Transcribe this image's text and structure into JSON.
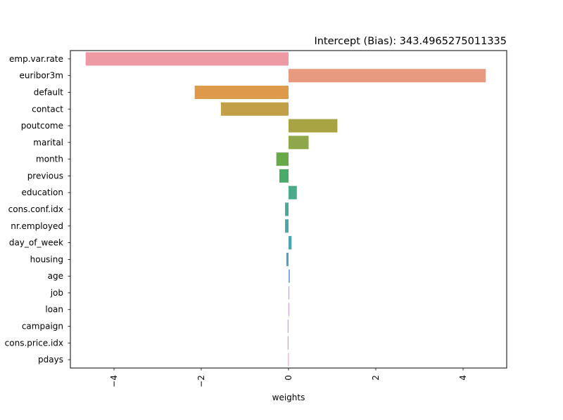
{
  "chart_data": {
    "type": "bar",
    "orientation": "horizontal",
    "title": "Intercept (Bias): 343.4965275011335",
    "xlabel": "weights",
    "ylabel": "",
    "xlim": [
      -5.0,
      5.0
    ],
    "x_ticks": [
      -4,
      -2,
      0,
      2,
      4
    ],
    "x_tick_labels": [
      "−4",
      "−2",
      "0",
      "2",
      "4"
    ],
    "x_tick_rotation": "vertical",
    "grid": false,
    "categories": [
      "emp.var.rate",
      "euribor3m",
      "default",
      "contact",
      "poutcome",
      "marital",
      "month",
      "previous",
      "education",
      "cons.conf.idx",
      "nr.employed",
      "day_of_week",
      "housing",
      "age",
      "job",
      "loan",
      "campaign",
      "cons.price.idx",
      "pdays"
    ],
    "values": [
      -4.65,
      4.52,
      -2.15,
      -1.55,
      1.12,
      0.46,
      -0.28,
      -0.21,
      0.19,
      -0.08,
      -0.08,
      0.07,
      -0.05,
      0.03,
      0.015,
      0.012,
      -0.02,
      -0.02,
      -0.01
    ],
    "colors": [
      "#ed9aa5",
      "#e89a80",
      "#dc9a4a",
      "#c3a048",
      "#a8a444",
      "#90a64a",
      "#68aa4a",
      "#4aab68",
      "#4aab8a",
      "#4aa89c",
      "#4aa8a8",
      "#4aa5b2",
      "#50a2c0",
      "#7aa2e2",
      "#a6a4ee",
      "#c89ef0",
      "#dc98e6",
      "#e298cf",
      "#e69cb6"
    ]
  }
}
